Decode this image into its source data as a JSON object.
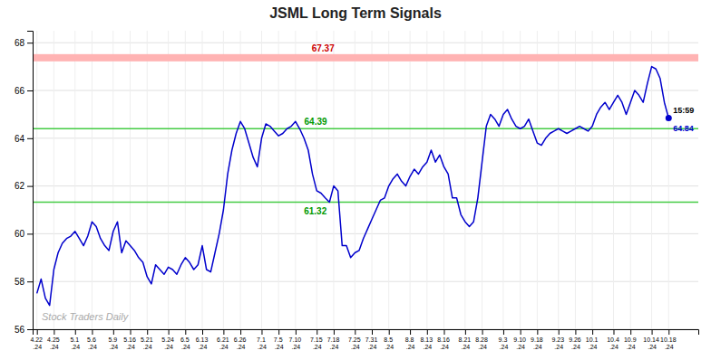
{
  "chart_data": {
    "type": "line",
    "title": "JSML Long Term Signals",
    "color": "#0000cc",
    "grid": true,
    "ylim": [
      56,
      68.5
    ],
    "yticks": [
      56,
      58,
      60,
      62,
      64,
      66,
      68
    ],
    "categories": [
      "4.22\n.24",
      null,
      null,
      null,
      "4.25\n.24",
      null,
      null,
      null,
      null,
      "5.1\n.24",
      null,
      null,
      null,
      "5.6\n.24",
      null,
      null,
      null,
      null,
      "5.9\n.24",
      null,
      null,
      null,
      "5.16\n.24",
      null,
      null,
      null,
      "5.21\n.24",
      null,
      null,
      null,
      null,
      "5.24\n.24",
      null,
      null,
      null,
      "6.5\n.24",
      null,
      null,
      null,
      "6.13\n.24",
      null,
      null,
      null,
      null,
      "6.21\n.24",
      null,
      null,
      null,
      "6.26\n.24",
      null,
      null,
      null,
      null,
      "7.1\n.24",
      null,
      null,
      null,
      "7.5\n.24",
      null,
      null,
      null,
      "7.10\n.24",
      null,
      null,
      null,
      null,
      "7.15\n.24",
      null,
      null,
      null,
      "7.18\n.24",
      null,
      null,
      null,
      null,
      "7.25\n.24",
      null,
      null,
      null,
      "7.31\n.24",
      null,
      null,
      null,
      "8.5\n.24",
      null,
      null,
      null,
      null,
      "8.8\n.24",
      null,
      null,
      null,
      "8.13\n.24",
      null,
      null,
      null,
      "8.16\n.24",
      null,
      null,
      null,
      null,
      "8.21\n.24",
      null,
      null,
      null,
      "8.28\n.24",
      null,
      null,
      null,
      null,
      "9.3\n.24",
      null,
      null,
      null,
      "9.10\n.24",
      null,
      null,
      null,
      "9.18\n.24",
      null,
      null,
      null,
      null,
      "9.23\n.24",
      null,
      null,
      null,
      "9.26\n.24",
      null,
      null,
      null,
      "10.1\n.24",
      null,
      null,
      null,
      null,
      "10.4\n.24",
      null,
      null,
      null,
      "10.9\n.24",
      null,
      null,
      null,
      null,
      "10.14\n.24",
      null,
      null,
      null,
      "10.18\n.24"
    ],
    "values": [
      57.5,
      58.1,
      57.3,
      57.0,
      58.5,
      59.2,
      59.6,
      59.8,
      59.9,
      60.1,
      59.8,
      59.5,
      59.9,
      60.5,
      60.3,
      59.8,
      59.5,
      59.3,
      60.1,
      60.5,
      59.2,
      59.7,
      59.5,
      59.3,
      59.0,
      58.8,
      58.2,
      57.9,
      58.7,
      58.5,
      58.3,
      58.6,
      58.5,
      58.3,
      58.7,
      59.0,
      58.8,
      58.5,
      58.7,
      59.5,
      58.5,
      58.4,
      59.2,
      60.0,
      61.0,
      62.5,
      63.5,
      64.2,
      64.7,
      64.4,
      63.8,
      63.2,
      62.8,
      64.0,
      64.6,
      64.5,
      64.3,
      64.1,
      64.2,
      64.4,
      64.5,
      64.7,
      64.39,
      64.0,
      63.5,
      62.5,
      61.8,
      61.7,
      61.5,
      61.32,
      62.0,
      61.8,
      59.5,
      59.5,
      59.0,
      59.2,
      59.3,
      59.8,
      60.2,
      60.6,
      61.0,
      61.4,
      61.5,
      62.0,
      62.3,
      62.5,
      62.2,
      62.0,
      62.4,
      62.7,
      62.5,
      62.8,
      63.0,
      63.5,
      63.0,
      63.3,
      62.8,
      62.5,
      61.5,
      61.5,
      60.8,
      60.5,
      60.3,
      60.5,
      61.5,
      63.0,
      64.5,
      65.0,
      64.8,
      64.5,
      65.0,
      65.2,
      64.8,
      64.5,
      64.4,
      64.5,
      64.8,
      64.3,
      63.8,
      63.7,
      64.0,
      64.2,
      64.3,
      64.4,
      64.3,
      64.2,
      64.3,
      64.4,
      64.5,
      64.4,
      64.3,
      64.5,
      65.0,
      65.3,
      65.5,
      65.2,
      65.5,
      65.8,
      65.5,
      65.0,
      65.5,
      66.0,
      65.8,
      65.5,
      66.3,
      67.0,
      66.9,
      66.5,
      65.5,
      64.84
    ],
    "bands": [
      {
        "value": 67.37,
        "color": "#ffb3b3"
      }
    ],
    "hlines": [
      {
        "value": 64.4,
        "color": "#44cc44"
      },
      {
        "value": 61.32,
        "color": "#44cc44"
      }
    ],
    "annotations": [
      {
        "text": "67.37",
        "y": 67.37,
        "color": "#cc0000"
      },
      {
        "text": "64.39",
        "x": 62,
        "y": 64.39,
        "color": "#009900"
      },
      {
        "text": "61.32",
        "x": 69,
        "y": 61.32,
        "color": "#009900"
      },
      {
        "text": "15:59",
        "x": 149,
        "y": 64.84
      },
      {
        "text": "64.84",
        "x": 149,
        "y": 64.84,
        "color": "#0000cc"
      },
      {
        "text": "Stock Traders Daily",
        "color": "#aaaaaa"
      }
    ]
  }
}
